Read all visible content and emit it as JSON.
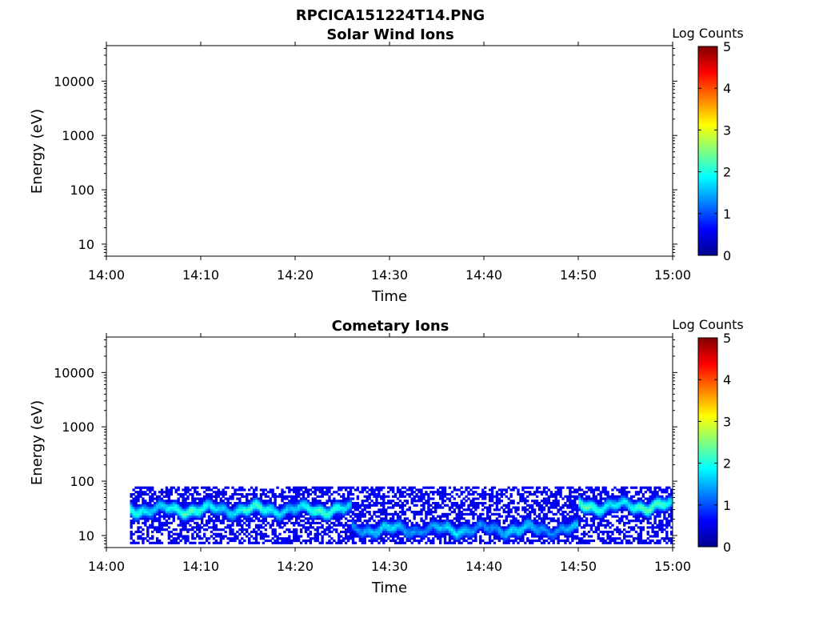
{
  "figure_title": "RPCICA151224T14.PNG",
  "chart_data": [
    {
      "type": "heatmap",
      "title": "Solar Wind Ions",
      "xlabel": "Time",
      "ylabel": "Energy (eV)",
      "x_ticks": [
        "14:00",
        "14:10",
        "14:20",
        "14:30",
        "14:40",
        "14:50",
        "15:00"
      ],
      "y_scale": "log",
      "y_ticks": [
        {
          "value": 10,
          "label": "10"
        },
        {
          "value": 100,
          "label": "100"
        },
        {
          "value": 1000,
          "label": "1000"
        },
        {
          "value": 10000,
          "label": "10000"
        }
      ],
      "xlim_minutes_after_1400": [
        0,
        60
      ],
      "ylim": [
        6,
        45000
      ],
      "colorbar": {
        "label": "Log Counts",
        "min": 0,
        "max": 5,
        "ticks": [
          "0",
          "1",
          "2",
          "3",
          "4",
          "5"
        ]
      },
      "data": "empty (no counts)"
    },
    {
      "type": "heatmap",
      "title": "Cometary Ions",
      "xlabel": "Time",
      "ylabel": "Energy (eV)",
      "x_ticks": [
        "14:00",
        "14:10",
        "14:20",
        "14:30",
        "14:40",
        "14:50",
        "15:00"
      ],
      "y_scale": "log",
      "y_ticks": [
        {
          "value": 10,
          "label": "10"
        },
        {
          "value": 100,
          "label": "100"
        },
        {
          "value": 1000,
          "label": "1000"
        },
        {
          "value": 10000,
          "label": "10000"
        }
      ],
      "xlim_minutes_after_1400": [
        0,
        60
      ],
      "ylim": [
        6,
        45000
      ],
      "colorbar": {
        "label": "Log Counts",
        "min": 0,
        "max": 5,
        "ticks": [
          "0",
          "1",
          "2",
          "3",
          "4",
          "5"
        ]
      },
      "energy_band_eV": [
        7,
        80
      ],
      "segments": [
        {
          "t_start": "14:02:30",
          "t_end": "14:26:00",
          "core_energy_eV": 30,
          "peak_log_counts": 1.9
        },
        {
          "t_start": "14:26:00",
          "t_end": "14:50:00",
          "core_energy_eV": 13,
          "peak_log_counts": 1.5
        },
        {
          "t_start": "14:50:00",
          "t_end": "15:00:00",
          "core_energy_eV": 35,
          "peak_log_counts": 2.0
        }
      ]
    }
  ]
}
